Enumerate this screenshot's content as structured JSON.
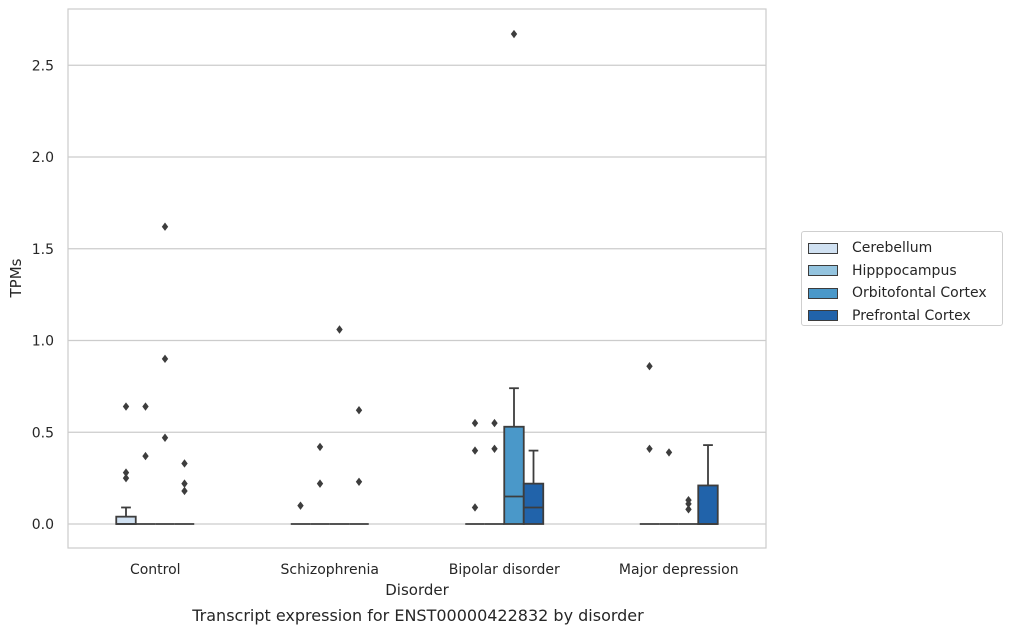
{
  "chart_data": {
    "type": "box",
    "title": "Transcript expression for ENST00000422832 by disorder",
    "xlabel": "Disorder",
    "ylabel": "TPMs",
    "categories": [
      "Control",
      "Schizophrenia",
      "Bipolar disorder",
      "Major depression"
    ],
    "ylim": [
      -0.13,
      2.82
    ],
    "yticks": [
      0.0,
      0.5,
      1.0,
      1.5,
      2.0,
      2.5
    ],
    "ytick_labels": [
      "0.0",
      "0.5",
      "1.0",
      "1.5",
      "2.0",
      "2.5"
    ],
    "grid": "horizontal",
    "legend_position": "right",
    "series": [
      {
        "name": "Cerebellum",
        "color": "#d0e1f2",
        "boxes": [
          {
            "q1": 0.0,
            "median": 0.0,
            "q3": 0.04,
            "whisker_low": 0.0,
            "whisker_high": 0.09,
            "outliers": [
              0.64,
              0.28,
              0.25
            ]
          },
          {
            "q1": 0.0,
            "median": 0.0,
            "q3": 0.0,
            "whisker_low": 0.0,
            "whisker_high": 0.0,
            "outliers": [
              0.1
            ]
          },
          {
            "q1": 0.0,
            "median": 0.0,
            "q3": 0.0,
            "whisker_low": 0.0,
            "whisker_high": 0.0,
            "outliers": [
              0.55,
              0.4,
              0.09
            ]
          },
          {
            "q1": 0.0,
            "median": 0.0,
            "q3": 0.0,
            "whisker_low": 0.0,
            "whisker_high": 0.0,
            "outliers": [
              0.86,
              0.41
            ]
          }
        ]
      },
      {
        "name": "Hipppocampus",
        "color": "#94c4df",
        "boxes": [
          {
            "q1": 0.0,
            "median": 0.0,
            "q3": 0.0,
            "whisker_low": 0.0,
            "whisker_high": 0.0,
            "outliers": [
              0.64,
              0.37
            ]
          },
          {
            "q1": 0.0,
            "median": 0.0,
            "q3": 0.0,
            "whisker_low": 0.0,
            "whisker_high": 0.0,
            "outliers": [
              0.42,
              0.22
            ]
          },
          {
            "q1": 0.0,
            "median": 0.0,
            "q3": 0.0,
            "whisker_low": 0.0,
            "whisker_high": 0.0,
            "outliers": [
              0.55,
              0.41
            ]
          },
          {
            "q1": 0.0,
            "median": 0.0,
            "q3": 0.0,
            "whisker_low": 0.0,
            "whisker_high": 0.0,
            "outliers": [
              0.39
            ]
          }
        ]
      },
      {
        "name": "Orbitofontal Cortex",
        "color": "#4a98c9",
        "boxes": [
          {
            "q1": 0.0,
            "median": 0.0,
            "q3": 0.0,
            "whisker_low": 0.0,
            "whisker_high": 0.0,
            "outliers": [
              1.62,
              0.9,
              0.47
            ]
          },
          {
            "q1": 0.0,
            "median": 0.0,
            "q3": 0.0,
            "whisker_low": 0.0,
            "whisker_high": 0.0,
            "outliers": [
              1.06
            ]
          },
          {
            "q1": 0.0,
            "median": 0.15,
            "q3": 0.53,
            "whisker_low": 0.0,
            "whisker_high": 0.74,
            "outliers": [
              2.67
            ]
          },
          {
            "q1": 0.0,
            "median": 0.0,
            "q3": 0.0,
            "whisker_low": 0.0,
            "whisker_high": 0.0,
            "outliers": [
              0.13,
              0.11,
              0.08
            ]
          }
        ]
      },
      {
        "name": "Prefrontal Cortex",
        "color": "#2163aa",
        "boxes": [
          {
            "q1": 0.0,
            "median": 0.0,
            "q3": 0.0,
            "whisker_low": 0.0,
            "whisker_high": 0.0,
            "outliers": [
              0.33,
              0.22,
              0.18
            ]
          },
          {
            "q1": 0.0,
            "median": 0.0,
            "q3": 0.0,
            "whisker_low": 0.0,
            "whisker_high": 0.0,
            "outliers": [
              0.62,
              0.23
            ]
          },
          {
            "q1": 0.0,
            "median": 0.09,
            "q3": 0.22,
            "whisker_low": 0.0,
            "whisker_high": 0.4,
            "outliers": []
          },
          {
            "q1": 0.0,
            "median": 0.0,
            "q3": 0.21,
            "whisker_low": 0.0,
            "whisker_high": 0.43,
            "outliers": []
          }
        ]
      }
    ]
  }
}
